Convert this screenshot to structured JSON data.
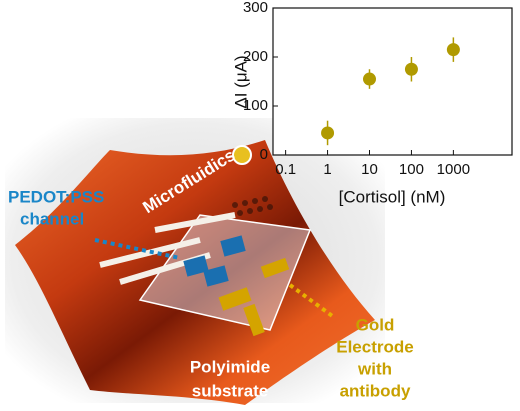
{
  "chart_data": {
    "type": "scatter",
    "xlabel": "[Cortisol] (nM)",
    "ylabel": "ΔI (μA)",
    "x_scale": "log",
    "xlim": [
      0.05,
      25000
    ],
    "xticks": [
      0.1,
      1,
      10,
      100,
      1000
    ],
    "ylim": [
      0,
      300
    ],
    "yticks": [
      0,
      100,
      200,
      300
    ],
    "series": [
      {
        "color": "#b09a00",
        "x": [
          1,
          10,
          100,
          1000
        ],
        "values": [
          45,
          155,
          175,
          215
        ],
        "errors": [
          25,
          20,
          25,
          25
        ]
      }
    ]
  },
  "illustration": {
    "pedot_label": [
      "PEDOT:PSS",
      "channel"
    ],
    "microfluidics_label": "Microfluidics",
    "gold_label": [
      "Gold",
      "Electrode",
      "with",
      "antibody"
    ],
    "substrate_label": [
      "Polyimide",
      "substrate"
    ]
  }
}
